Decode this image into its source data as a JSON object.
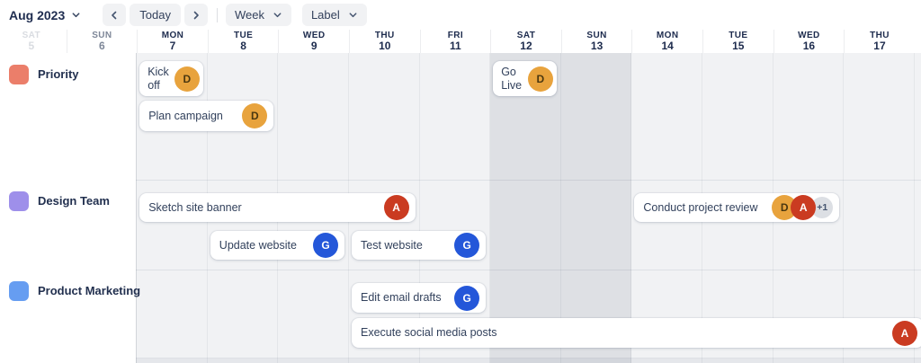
{
  "toolbar": {
    "month_label": "Aug 2023",
    "today_label": "Today",
    "view_label": "Week",
    "filter_label": "Label"
  },
  "days": [
    {
      "name": "SAT",
      "num": "5",
      "weekend": true,
      "faded": "strong"
    },
    {
      "name": "SUN",
      "num": "6",
      "weekend": true,
      "faded": "soft"
    },
    {
      "name": "MON",
      "num": "7",
      "weekend": false
    },
    {
      "name": "TUE",
      "num": "8",
      "weekend": false
    },
    {
      "name": "WED",
      "num": "9",
      "weekend": false
    },
    {
      "name": "THU",
      "num": "10",
      "weekend": false
    },
    {
      "name": "FRI",
      "num": "11",
      "weekend": false
    },
    {
      "name": "SAT",
      "num": "12",
      "weekend": true
    },
    {
      "name": "SUN",
      "num": "13",
      "weekend": true
    },
    {
      "name": "MON",
      "num": "14",
      "weekend": false
    },
    {
      "name": "TUE",
      "num": "15",
      "weekend": false
    },
    {
      "name": "WED",
      "num": "16",
      "weekend": false
    },
    {
      "name": "THU",
      "num": "17",
      "weekend": false
    }
  ],
  "groups": [
    {
      "id": "priority",
      "label": "Priority",
      "color": "#EB7E6A"
    },
    {
      "id": "design",
      "label": "Design Team",
      "color": "#9E8FEA"
    },
    {
      "id": "marketing",
      "label": "Product Marketing",
      "color": "#669DF1"
    }
  ],
  "cards": [
    {
      "group": "priority",
      "title": "Kick off",
      "start": "MON 7",
      "span_days": 1,
      "slot": 0,
      "avatars": [
        {
          "initial": "D",
          "color": "orange"
        }
      ]
    },
    {
      "group": "priority",
      "title": "Plan campaign",
      "start": "MON 7",
      "span_days": 2,
      "slot": 1,
      "avatars": [
        {
          "initial": "D",
          "color": "orange"
        }
      ]
    },
    {
      "group": "priority",
      "title": "Go Live",
      "start": "SAT 12",
      "span_days": 1,
      "slot": 0,
      "avatars": [
        {
          "initial": "D",
          "color": "orange"
        }
      ]
    },
    {
      "group": "design",
      "title": "Sketch site banner",
      "start": "MON 7",
      "span_days": 4,
      "slot": 0,
      "avatars": [
        {
          "initial": "A",
          "color": "red"
        }
      ]
    },
    {
      "group": "design",
      "title": "Update website",
      "start": "TUE 8",
      "span_days": 2,
      "slot": 1,
      "avatars": [
        {
          "initial": "G",
          "color": "blue"
        }
      ]
    },
    {
      "group": "design",
      "title": "Test website",
      "start": "THU 10",
      "span_days": 2,
      "slot": 1,
      "avatars": [
        {
          "initial": "G",
          "color": "blue"
        }
      ]
    },
    {
      "group": "design",
      "title": "Conduct project review",
      "start": "MON 14",
      "span_days": 3,
      "slot": 0,
      "avatars": [
        {
          "initial": "D",
          "color": "orange"
        },
        {
          "initial": "A",
          "color": "red"
        },
        {
          "overflow": "+1"
        }
      ]
    },
    {
      "group": "marketing",
      "title": "Edit email drafts",
      "start": "THU 10",
      "span_days": 2,
      "slot": 0,
      "avatars": [
        {
          "initial": "G",
          "color": "blue"
        }
      ]
    },
    {
      "group": "marketing",
      "title": "Execute social media posts",
      "start": "THU 10",
      "span_days": 8,
      "slot": 1,
      "clipped_right": true,
      "avatars": [
        {
          "initial": "A",
          "color": "red"
        }
      ]
    }
  ],
  "avatar_colors": {
    "orange": {
      "bg": "#E8A33D",
      "fg": "#4A3710"
    },
    "red": {
      "bg": "#CA3B21",
      "fg": "#FFFFFF"
    },
    "blue": {
      "bg": "#2457D9",
      "fg": "#FFFFFF"
    },
    "overflow": {
      "bg": "#DCDFE4",
      "fg": "#44546F"
    }
  }
}
